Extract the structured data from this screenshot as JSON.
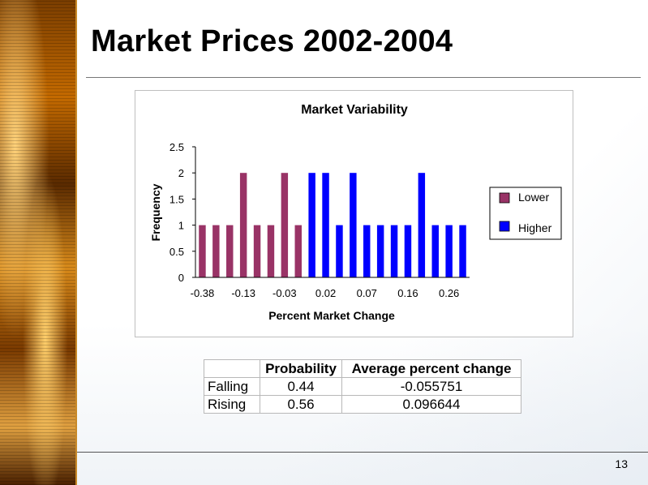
{
  "slide": {
    "title": "Market Prices 2002-2004",
    "page_number": "13"
  },
  "colors": {
    "lower": "#993366",
    "higher": "#0000ff"
  },
  "chart_data": {
    "type": "bar",
    "title": "Market Variability",
    "xlabel": "Percent Market Change",
    "ylabel": "Frequency",
    "ylim": [
      0,
      2.5
    ],
    "yticks": [
      "0",
      "0.5",
      "1",
      "1.5",
      "2",
      "2.5"
    ],
    "xtick_labels": [
      "-0.38",
      "-0.13",
      "-0.03",
      "0.02",
      "0.07",
      "0.16",
      "0.26"
    ],
    "legend_position": "right",
    "series": [
      {
        "name": "Lower",
        "values": [
          1,
          1,
          1,
          2,
          1,
          1,
          2,
          1,
          null,
          null,
          null,
          null,
          null,
          null,
          null,
          null,
          null,
          null,
          null,
          null
        ]
      },
      {
        "name": "Higher",
        "values": [
          null,
          null,
          null,
          null,
          null,
          null,
          null,
          null,
          2,
          2,
          1,
          2,
          1,
          1,
          1,
          1,
          2,
          1,
          1,
          1
        ]
      }
    ]
  },
  "table": {
    "headers": [
      "",
      "Probability",
      "Average percent change"
    ],
    "rows": [
      [
        "Falling",
        "0.44",
        "-0.055751"
      ],
      [
        "Rising",
        "0.56",
        "0.096644"
      ]
    ]
  }
}
